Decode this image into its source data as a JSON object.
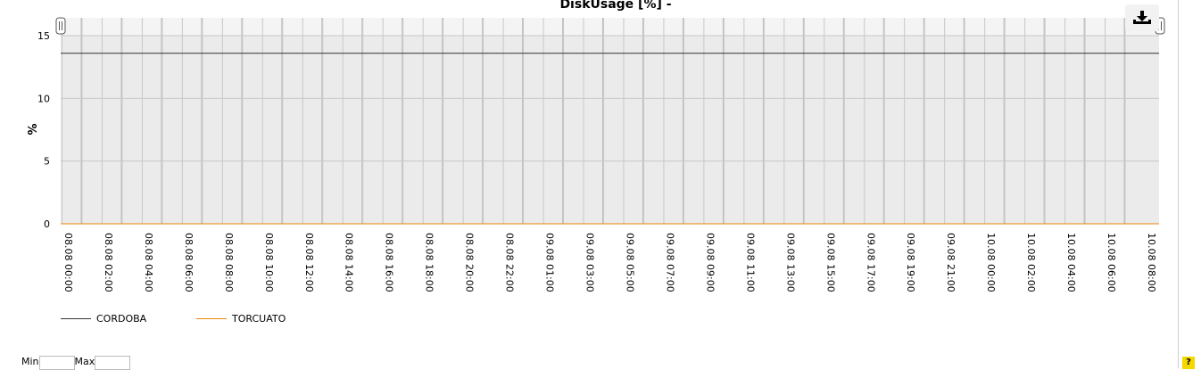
{
  "chart_data": {
    "type": "line",
    "title": "DiskUsage [%] -",
    "ylabel": "%",
    "xlabel": "",
    "ylim": [
      0,
      15
    ],
    "yticks": [
      "0",
      "5",
      "10",
      "15"
    ],
    "grid": true,
    "legend_position": "bottom-left",
    "x_tick_labels": [
      "08.08 00:00",
      "08.08 02:00",
      "08.08 04:00",
      "08.08 06:00",
      "08.08 08:00",
      "08.08 10:00",
      "08.08 12:00",
      "08.08 14:00",
      "08.08 16:00",
      "08.08 18:00",
      "08.08 20:00",
      "08.08 22:00",
      "09.08 01:00",
      "09.08 03:00",
      "09.08 05:00",
      "09.08 07:00",
      "09.08 09:00",
      "09.08 11:00",
      "09.08 13:00",
      "09.08 15:00",
      "09.08 17:00",
      "09.08 19:00",
      "09.08 21:00",
      "10.08 00:00",
      "10.08 02:00",
      "10.08 04:00",
      "10.08 06:00",
      "10.08 08:00"
    ],
    "series": [
      {
        "name": "CORDOBA",
        "color": "#333333",
        "x": [
          "08.08 00:00",
          "10.08 08:00"
        ],
        "values": [
          13.6,
          13.6
        ]
      },
      {
        "name": "TORCUATO",
        "color": "#e8870a",
        "x": [
          "08.08 00:00",
          "10.08 08:00"
        ],
        "values": [
          0,
          0
        ]
      }
    ]
  },
  "controls": {
    "min_label": "Min",
    "max_label": "Max",
    "min_value": "",
    "max_value": "",
    "help_label": "?",
    "export_icon": "download-icon"
  }
}
